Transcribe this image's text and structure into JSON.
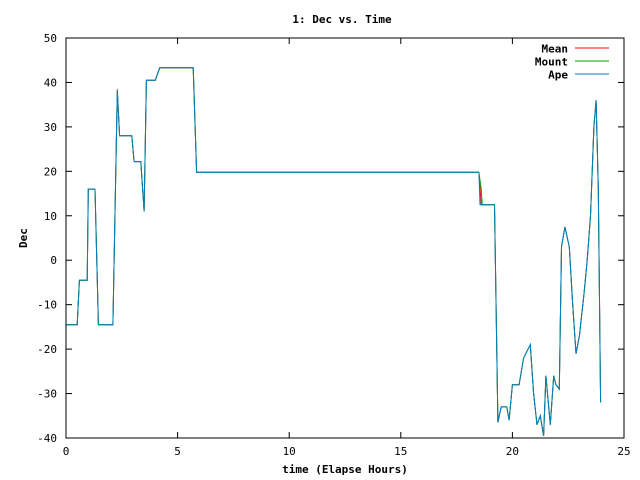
{
  "chart_data": {
    "type": "line",
    "title": "1: Dec vs. Time",
    "xlabel": "time (Elapse Hours)",
    "ylabel": "Dec",
    "xlim": [
      0,
      25
    ],
    "ylim": [
      -40,
      50
    ],
    "x_ticks": [
      0,
      5,
      10,
      15,
      20,
      25
    ],
    "y_ticks": [
      -40,
      -30,
      -20,
      -10,
      0,
      10,
      20,
      30,
      40,
      50
    ],
    "grid": false,
    "legend_position": "top-right",
    "series": [
      {
        "name": "Mean",
        "color": "#ff0000",
        "points": [
          [
            0.0,
            -14.5
          ],
          [
            0.5,
            -14.5
          ],
          [
            0.6,
            -4.5
          ],
          [
            0.95,
            -4.5
          ],
          [
            1.0,
            16
          ],
          [
            1.3,
            16
          ],
          [
            1.45,
            -14.5
          ],
          [
            2.1,
            -14.5
          ],
          [
            2.3,
            38
          ],
          [
            2.4,
            28
          ],
          [
            2.95,
            28
          ],
          [
            3.05,
            22.2
          ],
          [
            3.35,
            22.2
          ],
          [
            3.5,
            11
          ],
          [
            3.6,
            40.5
          ],
          [
            4.0,
            40.5
          ],
          [
            4.2,
            43.3
          ],
          [
            5.7,
            43.3
          ],
          [
            5.85,
            19.8
          ],
          [
            6.2,
            19.8
          ],
          [
            6.25,
            19.8
          ],
          [
            18.5,
            19.8
          ],
          [
            18.6,
            12.5
          ],
          [
            19.2,
            12.5
          ],
          [
            19.35,
            -36.5
          ],
          [
            19.5,
            -33
          ],
          [
            19.75,
            -33
          ],
          [
            19.85,
            -36
          ],
          [
            20.0,
            -28
          ],
          [
            20.3,
            -28
          ],
          [
            20.5,
            -22
          ],
          [
            20.8,
            -19
          ],
          [
            20.95,
            -30
          ],
          [
            21.1,
            -37
          ],
          [
            21.25,
            -35
          ],
          [
            21.4,
            -39.5
          ],
          [
            21.5,
            -26
          ],
          [
            21.7,
            -37
          ],
          [
            21.85,
            -26
          ],
          [
            21.95,
            -28
          ],
          [
            22.1,
            -29
          ],
          [
            22.2,
            3
          ],
          [
            22.35,
            7.5
          ],
          [
            22.55,
            3
          ],
          [
            22.7,
            -10
          ],
          [
            22.85,
            -21
          ],
          [
            23.0,
            -17
          ],
          [
            23.2,
            -8
          ],
          [
            23.35,
            0
          ],
          [
            23.5,
            10
          ],
          [
            23.65,
            30
          ],
          [
            23.75,
            36
          ],
          [
            23.85,
            16
          ],
          [
            23.95,
            -32
          ]
        ]
      },
      {
        "name": "Mount",
        "color": "#00a000",
        "points": [
          [
            0.0,
            -14.5
          ],
          [
            0.5,
            -14.5
          ],
          [
            0.6,
            -4.5
          ],
          [
            0.95,
            -4.5
          ],
          [
            1.0,
            16
          ],
          [
            1.3,
            16
          ],
          [
            1.45,
            -14.5
          ],
          [
            2.1,
            -14.5
          ],
          [
            2.3,
            38
          ],
          [
            2.4,
            28
          ],
          [
            2.95,
            28
          ],
          [
            3.05,
            22.2
          ],
          [
            3.35,
            22.2
          ],
          [
            3.5,
            11
          ],
          [
            3.6,
            40.5
          ],
          [
            4.0,
            40.5
          ],
          [
            4.2,
            43.3
          ],
          [
            5.7,
            43.3
          ],
          [
            5.85,
            19.8
          ],
          [
            18.5,
            19.8
          ],
          [
            18.6,
            16
          ],
          [
            18.65,
            12.5
          ],
          [
            19.2,
            12.5
          ],
          [
            19.35,
            -36.5
          ],
          [
            19.5,
            -33
          ],
          [
            19.75,
            -33
          ],
          [
            19.85,
            -36
          ],
          [
            20.0,
            -28
          ],
          [
            20.3,
            -28
          ],
          [
            20.5,
            -22
          ],
          [
            20.8,
            -19
          ],
          [
            20.95,
            -30
          ],
          [
            21.1,
            -37
          ],
          [
            21.25,
            -35
          ],
          [
            21.4,
            -39.5
          ],
          [
            21.5,
            -26
          ],
          [
            21.7,
            -37
          ],
          [
            21.85,
            -26
          ],
          [
            21.95,
            -28
          ],
          [
            22.1,
            -29
          ],
          [
            22.2,
            3
          ],
          [
            22.35,
            7.5
          ],
          [
            22.55,
            3
          ],
          [
            22.7,
            -10
          ],
          [
            22.85,
            -21
          ],
          [
            23.0,
            -17
          ],
          [
            23.2,
            -8
          ],
          [
            23.35,
            0
          ],
          [
            23.5,
            10
          ],
          [
            23.65,
            30
          ],
          [
            23.75,
            36
          ],
          [
            23.85,
            16
          ],
          [
            23.95,
            -32
          ]
        ]
      },
      {
        "name": "Ape",
        "color": "#0080c0",
        "points": [
          [
            0.0,
            -14.5
          ],
          [
            0.5,
            -14.5
          ],
          [
            0.6,
            -4.5
          ],
          [
            0.95,
            -4.5
          ],
          [
            1.0,
            16
          ],
          [
            1.3,
            16
          ],
          [
            1.45,
            -14.5
          ],
          [
            2.1,
            -14.5
          ],
          [
            2.3,
            38.5
          ],
          [
            2.4,
            28
          ],
          [
            2.95,
            28
          ],
          [
            3.05,
            22.2
          ],
          [
            3.35,
            22.2
          ],
          [
            3.5,
            11
          ],
          [
            3.6,
            40.5
          ],
          [
            4.0,
            40.5
          ],
          [
            4.2,
            43.3
          ],
          [
            5.7,
            43.3
          ],
          [
            5.85,
            19.8
          ],
          [
            18.5,
            19.8
          ],
          [
            18.55,
            12.5
          ],
          [
            19.2,
            12.5
          ],
          [
            19.35,
            -36.5
          ],
          [
            19.5,
            -33
          ],
          [
            19.75,
            -33
          ],
          [
            19.85,
            -36
          ],
          [
            20.0,
            -28
          ],
          [
            20.3,
            -28
          ],
          [
            20.5,
            -22
          ],
          [
            20.8,
            -19
          ],
          [
            20.95,
            -30
          ],
          [
            21.1,
            -37
          ],
          [
            21.25,
            -35
          ],
          [
            21.4,
            -39.5
          ],
          [
            21.5,
            -26
          ],
          [
            21.7,
            -37
          ],
          [
            21.85,
            -26
          ],
          [
            21.95,
            -28
          ],
          [
            22.1,
            -29
          ],
          [
            22.2,
            3
          ],
          [
            22.35,
            7.5
          ],
          [
            22.55,
            3
          ],
          [
            22.7,
            -10
          ],
          [
            22.85,
            -21
          ],
          [
            23.0,
            -17
          ],
          [
            23.2,
            -8
          ],
          [
            23.35,
            0
          ],
          [
            23.5,
            10
          ],
          [
            23.65,
            30
          ],
          [
            23.75,
            36
          ],
          [
            23.85,
            16
          ],
          [
            23.95,
            -32
          ]
        ]
      }
    ]
  }
}
